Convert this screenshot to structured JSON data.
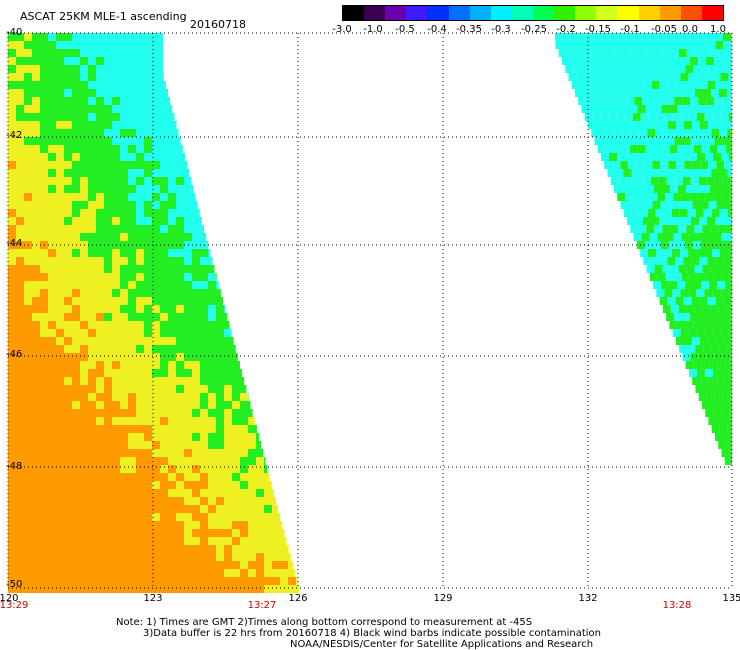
{
  "title": "ASCAT 25KM MLE-1 ascending",
  "date": "20160718",
  "colorbar": {
    "labels": [
      "-3.0",
      "-1.0",
      "-0.5",
      "-0.4",
      "-0.35",
      "-0.3",
      "-0.25",
      "-0.2",
      "-0.15",
      "-0.1",
      "-0.05",
      "0.0",
      "1.0"
    ],
    "colors": [
      "#000000",
      "#3a0055",
      "#6a00b0",
      "#3c1cff",
      "#0030ff",
      "#0070ff",
      "#00b0ff",
      "#00f0ff",
      "#00ffb8",
      "#00ff50",
      "#30f000",
      "#90ff00",
      "#d0ff20",
      "#ffff00",
      "#ffd000",
      "#ff9a00",
      "#ff5000",
      "#ff0000"
    ]
  },
  "axes": {
    "lat_labels": [
      "-40",
      "-42",
      "-44",
      "-46",
      "-48",
      "-50"
    ],
    "lon_labels": [
      "120",
      "123",
      "126",
      "129",
      "132",
      "135"
    ],
    "lat_range": [
      -50,
      -40
    ],
    "lon_range": [
      120,
      135
    ]
  },
  "times": [
    "13:29",
    "13:27",
    "13:28"
  ],
  "notes": [
    "Note: 1) Times are GMT 2)Times along bottom correspond to measurement at -45S",
    "3)Data buffer is 22 hrs from 20160718 4) Black wind barbs indicate possible contamination",
    "NOAA/NESDIS/Center for Satellite Applications and Research"
  ],
  "swath_colors": {
    "cyan": "#22ffee",
    "green": "#22ee22",
    "yellow": "#eef022",
    "orange": "#ff9a00"
  }
}
